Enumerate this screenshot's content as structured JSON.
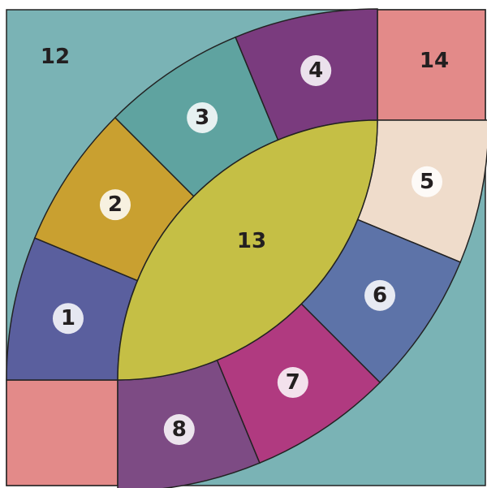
{
  "arc_pieces": [
    "1",
    "2",
    "3",
    "4",
    "5",
    "6",
    "7",
    "8"
  ],
  "background": "12",
  "center": "13",
  "corner": "14"
}
